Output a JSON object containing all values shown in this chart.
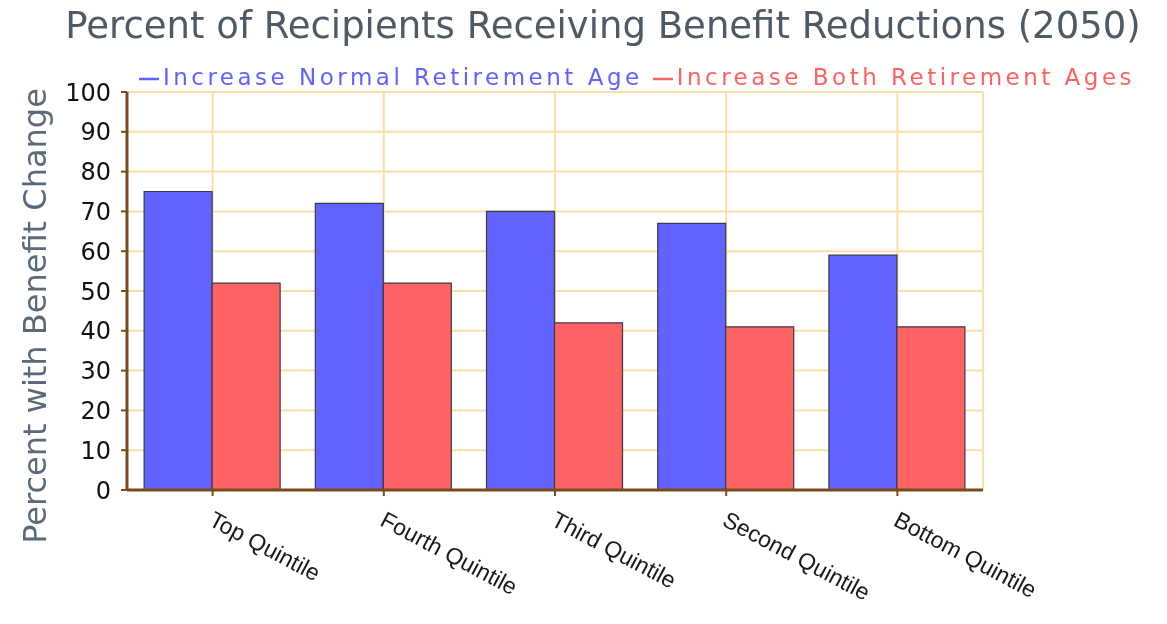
{
  "chart_data": {
    "type": "bar",
    "title": "Percent of Recipients Receiving Benefit Reductions (2050)",
    "ylabel": "Percent with Benefit Change",
    "categories": [
      "Top Quintile",
      "Fourth Quintile",
      "Third Quintile",
      "Second Quintile",
      "Bottom Quintile"
    ],
    "series": [
      {
        "name": "Increase Normal Retirement Age",
        "color": "#6262ff",
        "values": [
          75,
          72,
          70,
          67,
          59
        ]
      },
      {
        "name": "Increase Both Retirement Ages",
        "color": "#ff6262",
        "values": [
          52,
          52,
          42,
          41,
          41
        ]
      }
    ],
    "ylim": [
      0,
      100
    ],
    "yticks": [
      0,
      10,
      20,
      30,
      40,
      50,
      60,
      70,
      80,
      90,
      100
    ],
    "grid": true,
    "legend": "top"
  }
}
